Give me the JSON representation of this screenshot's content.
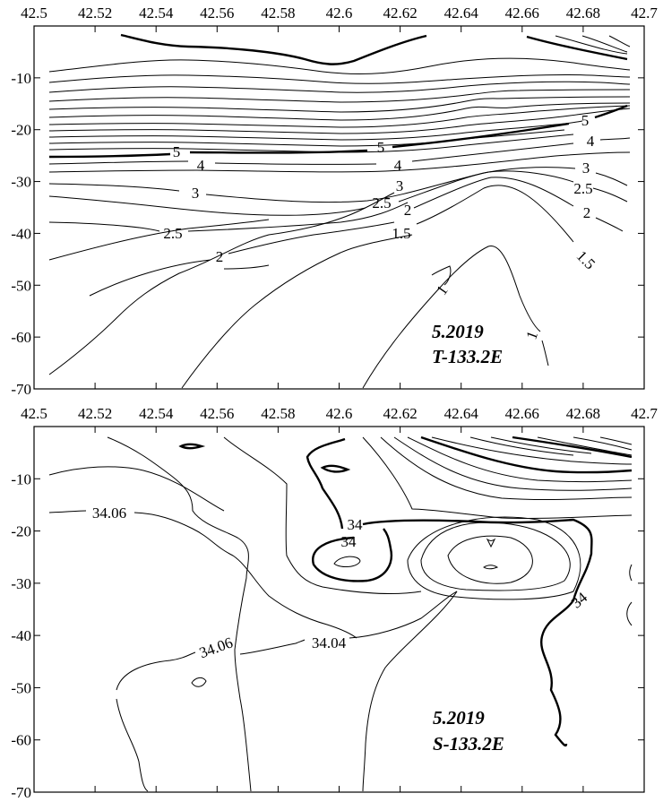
{
  "chart_data": [
    {
      "type": "contour",
      "x_ticks": [
        "42.5",
        "42.52",
        "42.54",
        "42.56",
        "42.58",
        "42.6",
        "42.62",
        "42.64",
        "42.66",
        "42.68",
        "42.7"
      ],
      "y_ticks": [
        "-10",
        "-20",
        "-30",
        "-40",
        "-50",
        "-60",
        "-70"
      ],
      "xlim": [
        42.5,
        42.7
      ],
      "ylim": [
        -70,
        0
      ],
      "contour_levels": [
        "1",
        "1.5",
        "2",
        "2.5",
        "3",
        "4",
        "5"
      ],
      "annotation": [
        "5.2019",
        "T-133.2E"
      ]
    },
    {
      "type": "contour",
      "x_ticks": [
        "42.5",
        "42.52",
        "42.54",
        "42.56",
        "42.58",
        "42.6",
        "42.62",
        "42.64",
        "42.66",
        "42.68",
        "42.7"
      ],
      "y_ticks": [
        "-10",
        "-20",
        "-30",
        "-40",
        "-50",
        "-60",
        "-70"
      ],
      "xlim": [
        42.5,
        42.7
      ],
      "ylim": [
        -70,
        0
      ],
      "contour_levels": [
        "34",
        "34.04",
        "34.06"
      ],
      "annotation": [
        "5.2019",
        "S-133.2E"
      ]
    }
  ]
}
